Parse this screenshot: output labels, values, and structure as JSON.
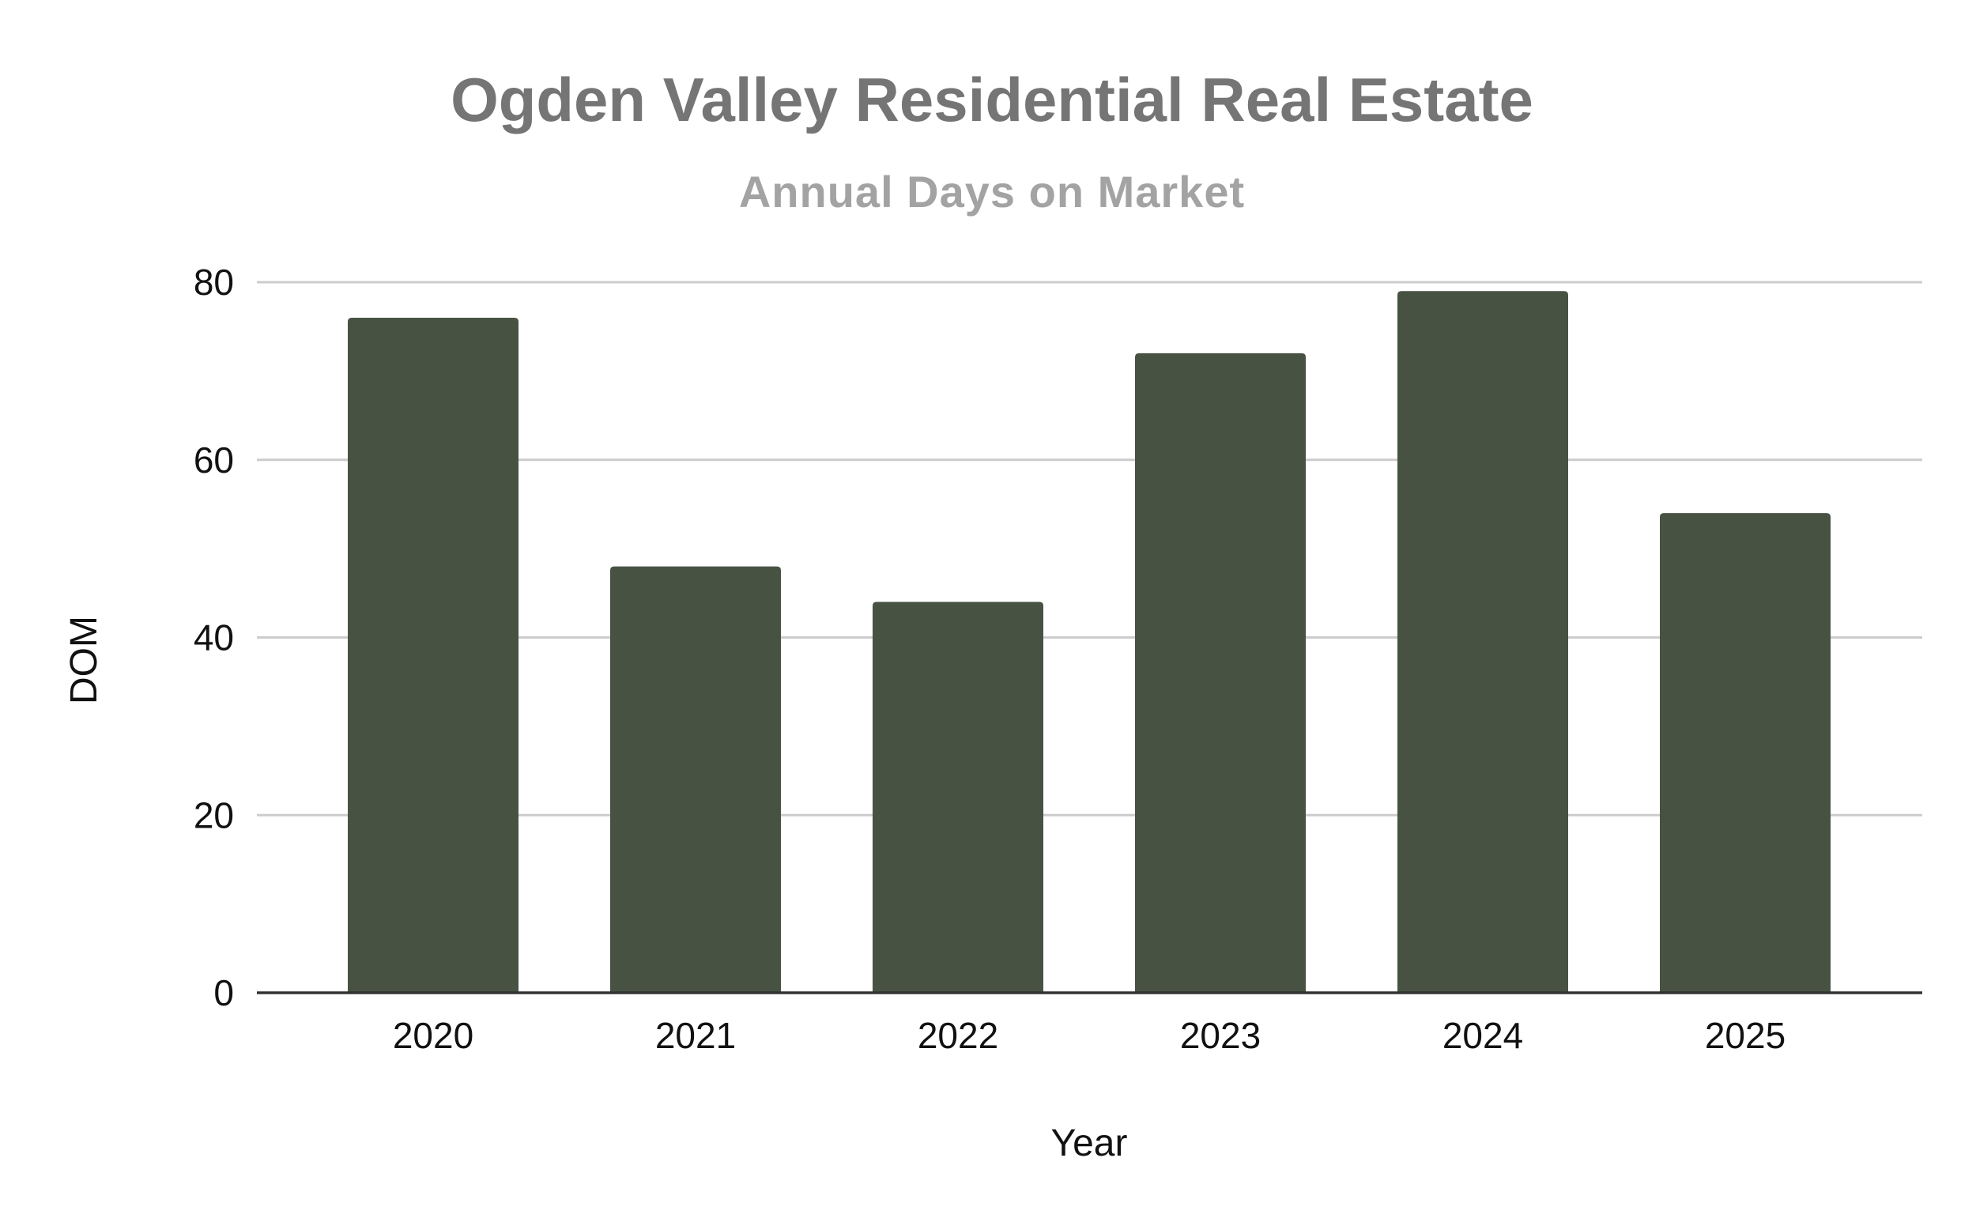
{
  "chart_data": {
    "type": "bar",
    "title": "Ogden Valley Residential Real Estate",
    "subtitle": "Annual Days on Market",
    "xlabel": "Year",
    "ylabel": "DOM",
    "categories": [
      "2020",
      "2021",
      "2022",
      "2023",
      "2024",
      "2025"
    ],
    "values": [
      76,
      48,
      44,
      72,
      79,
      54
    ],
    "ylim": [
      0,
      80
    ],
    "yticks": [
      "0",
      "20",
      "40",
      "60",
      "80"
    ],
    "grid": true,
    "legend": "none"
  },
  "colors": {
    "bar": "#475243",
    "title": "#757575",
    "subtitle": "#a3a3a3",
    "grid": "#cccccc",
    "axis": "#333333"
  }
}
